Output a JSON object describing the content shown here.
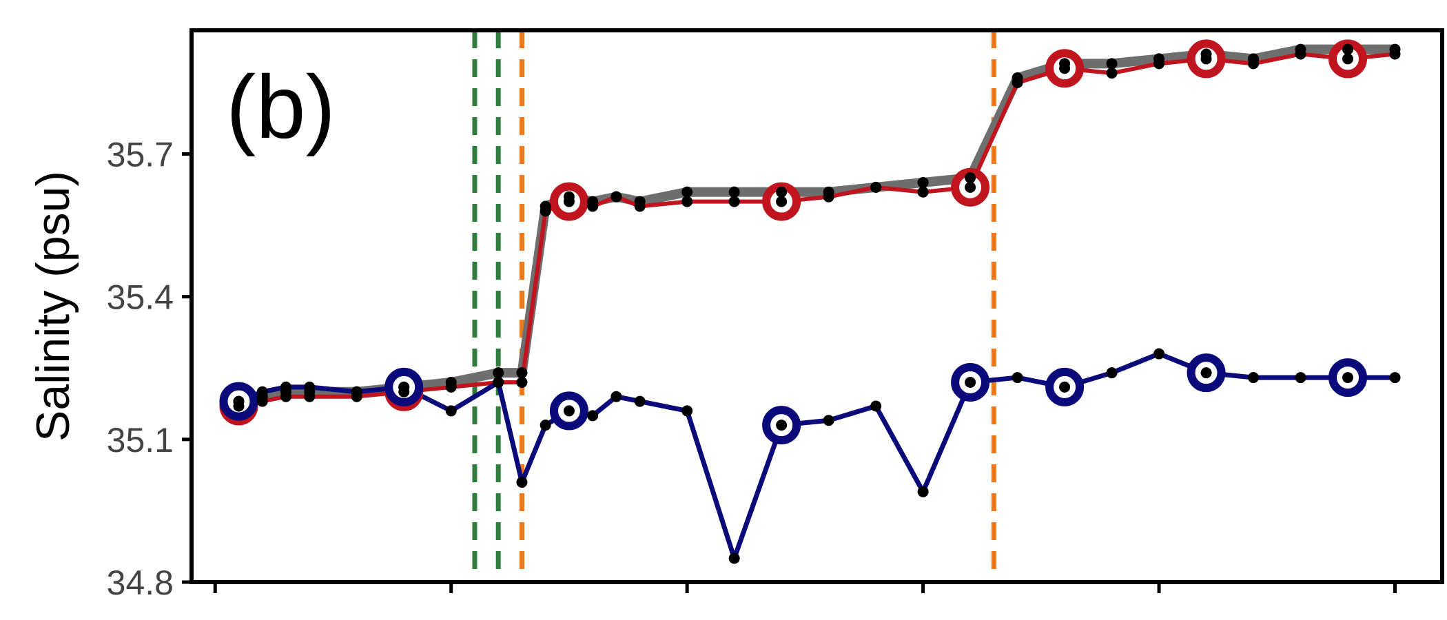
{
  "chart_data": {
    "type": "line",
    "panel_label": "(b)",
    "xlabel": "",
    "ylabel": "Salinity (psu)",
    "ylim": [
      34.8,
      35.96
    ],
    "xlim": [
      -0.1,
      5.2
    ],
    "yticks": [
      34.8,
      35.1,
      35.4,
      35.7
    ],
    "ytick_labels": [
      "34.8",
      "35.1",
      "35.4",
      "35.7"
    ],
    "xticks": [
      0,
      1,
      2,
      3,
      4,
      5
    ],
    "xtick_labels": [
      "",
      "",
      "",
      "",
      "",
      ""
    ],
    "grid": false,
    "legend": "none",
    "colors": {
      "gray": "#6e6e6e",
      "red": "#c0141e",
      "blue": "#0a0a7a",
      "green_dashed": "#2e7d3e",
      "orange_dashed": "#f07818",
      "point": "#000000"
    },
    "vlines": [
      {
        "x": 1.1,
        "color": "green_dashed"
      },
      {
        "x": 1.2,
        "color": "green_dashed"
      },
      {
        "x": 1.3,
        "color": "orange_dashed"
      },
      {
        "x": 3.3,
        "color": "orange_dashed"
      }
    ],
    "series": [
      {
        "color": "gray",
        "x": [
          0.1,
          0.2,
          0.3,
          0.4,
          0.6,
          0.8,
          1.0,
          1.2,
          1.3,
          1.4,
          1.5,
          1.6,
          1.7,
          1.8,
          2.0,
          2.2,
          2.4,
          2.6,
          2.8,
          3.0,
          3.2,
          3.4,
          3.6,
          3.8,
          4.0,
          4.2,
          4.4,
          4.6,
          4.8,
          5.0
        ],
        "y": [
          35.18,
          35.19,
          35.2,
          35.2,
          35.2,
          35.21,
          35.22,
          35.24,
          35.24,
          35.59,
          35.61,
          35.6,
          35.61,
          35.6,
          35.62,
          35.62,
          35.62,
          35.62,
          35.63,
          35.64,
          35.65,
          35.86,
          35.89,
          35.89,
          35.9,
          35.91,
          35.9,
          35.92,
          35.92,
          35.92
        ]
      },
      {
        "color": "red",
        "x": [
          0.1,
          0.2,
          0.3,
          0.4,
          0.6,
          0.8,
          1.0,
          1.2,
          1.3,
          1.4,
          1.5,
          1.6,
          1.7,
          1.8,
          2.0,
          2.2,
          2.4,
          2.6,
          2.8,
          3.0,
          3.2,
          3.4,
          3.6,
          3.8,
          4.0,
          4.2,
          4.4,
          4.6,
          4.8,
          5.0
        ],
        "y": [
          35.17,
          35.18,
          35.19,
          35.19,
          35.19,
          35.2,
          35.21,
          35.22,
          35.22,
          35.58,
          35.6,
          35.59,
          35.61,
          35.59,
          35.6,
          35.6,
          35.6,
          35.61,
          35.63,
          35.62,
          35.63,
          35.85,
          35.88,
          35.87,
          35.89,
          35.9,
          35.89,
          35.91,
          35.9,
          35.91
        ],
        "markers": [
          0,
          5,
          10,
          16,
          20,
          22,
          25,
          28
        ]
      },
      {
        "color": "blue",
        "x": [
          0.1,
          0.2,
          0.3,
          0.4,
          0.6,
          0.8,
          1.0,
          1.2,
          1.3,
          1.4,
          1.5,
          1.6,
          1.7,
          1.8,
          2.0,
          2.2,
          2.4,
          2.6,
          2.8,
          3.0,
          3.2,
          3.4,
          3.6,
          3.8,
          4.0,
          4.2,
          4.4,
          4.6,
          4.8,
          5.0
        ],
        "y": [
          35.18,
          35.2,
          35.21,
          35.21,
          35.2,
          35.21,
          35.16,
          35.22,
          35.01,
          35.13,
          35.16,
          35.15,
          35.19,
          35.18,
          35.16,
          34.85,
          35.13,
          35.14,
          35.17,
          34.99,
          35.22,
          35.23,
          35.21,
          35.24,
          35.28,
          35.24,
          35.23,
          35.23,
          35.23,
          35.23
        ],
        "markers": [
          0,
          5,
          10,
          16,
          20,
          22,
          25,
          28
        ]
      }
    ]
  }
}
